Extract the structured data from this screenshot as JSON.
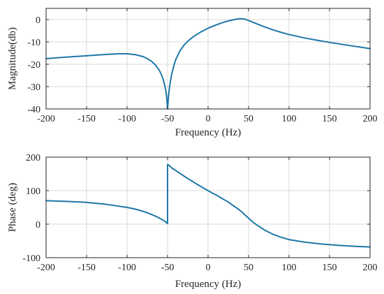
{
  "colors": {
    "trace": "#1f77a8",
    "grid": "#d9d9d9",
    "axis": "#262626"
  },
  "chart_data": [
    {
      "type": "line",
      "title": "",
      "xlabel": "Frequency (Hz)",
      "ylabel": "Magnitude(db)",
      "xlim": [
        -200,
        200
      ],
      "ylim": [
        -40,
        5
      ],
      "xticks": [
        -200,
        -150,
        -100,
        -50,
        0,
        50,
        100,
        150,
        200
      ],
      "xtick_labels": [
        "-200",
        "-150",
        "-100",
        "-50",
        "0",
        "50",
        "100",
        "150",
        "200"
      ],
      "yticks": [
        0,
        -10,
        -20,
        -30,
        -40
      ],
      "ytick_labels": [
        "0",
        "-10",
        "-20",
        "-30",
        "-40"
      ],
      "grid": true,
      "legend": "none",
      "series": [
        {
          "x": [
            -200,
            -175,
            -150,
            -125,
            -110,
            -100,
            -90,
            -80,
            -75,
            -70,
            -65,
            -60,
            -57,
            -55,
            -53,
            -52,
            -51,
            -50,
            -49,
            -48,
            -47,
            -45,
            -42,
            -40,
            -35,
            -30,
            -25,
            -20,
            -15,
            -10,
            -5,
            0,
            10,
            20,
            30,
            35,
            40,
            45,
            50,
            60,
            70,
            80,
            90,
            100,
            120,
            140,
            160,
            180,
            200
          ],
          "y": [
            -17.5,
            -16.8,
            -16.2,
            -15.6,
            -15.3,
            -15.3,
            -15.7,
            -16.6,
            -17.5,
            -18.6,
            -20.3,
            -22.8,
            -25.2,
            -27.3,
            -30.2,
            -32.3,
            -35.3,
            -40.0,
            -35.3,
            -31.6,
            -28.8,
            -24.5,
            -20.3,
            -18.0,
            -14.2,
            -11.6,
            -9.7,
            -8.2,
            -6.9,
            -5.8,
            -4.8,
            -3.9,
            -2.4,
            -1.1,
            -0.2,
            0.2,
            0.4,
            0.2,
            -0.4,
            -1.9,
            -3.3,
            -4.6,
            -5.7,
            -6.7,
            -8.3,
            -9.6,
            -10.8,
            -11.9,
            -13.0
          ]
        }
      ]
    },
    {
      "type": "line",
      "title": "",
      "xlabel": "Frequency (Hz)",
      "ylabel": "Phase (deg)",
      "xlim": [
        -200,
        200
      ],
      "ylim": [
        -100,
        200
      ],
      "xticks": [
        -200,
        -150,
        -100,
        -50,
        0,
        50,
        100,
        150,
        200
      ],
      "xtick_labels": [
        "-200",
        "-150",
        "-100",
        "-50",
        "0",
        "50",
        "100",
        "150",
        "200"
      ],
      "yticks": [
        200,
        100,
        0,
        -100
      ],
      "ytick_labels": [
        "200",
        "100",
        "0",
        "-100"
      ],
      "grid": true,
      "legend": "none",
      "series": [
        {
          "x": [
            -200,
            -175,
            -150,
            -125,
            -100,
            -90,
            -80,
            -75,
            -70,
            -65,
            -60,
            -57,
            -55,
            -53,
            -51,
            -50,
            -50,
            -49,
            -47,
            -45,
            -40,
            -35,
            -30,
            -25,
            -20,
            -15,
            -10,
            -5,
            0,
            5,
            10,
            15,
            20,
            25,
            30,
            35,
            40,
            45,
            50,
            55,
            60,
            70,
            80,
            90,
            100,
            120,
            140,
            160,
            180,
            200
          ],
          "y": [
            70,
            68,
            65,
            59,
            50,
            45,
            38,
            34,
            29,
            24,
            18,
            14,
            11,
            8,
            4,
            2,
            178,
            177,
            173,
            168,
            160,
            152,
            144,
            136,
            129,
            121,
            114,
            107,
            100,
            93,
            87,
            80,
            73,
            66,
            57,
            49,
            40,
            29,
            18,
            7,
            -2,
            -18,
            -30,
            -39,
            -46,
            -54,
            -59,
            -63,
            -66,
            -68
          ]
        }
      ]
    }
  ]
}
